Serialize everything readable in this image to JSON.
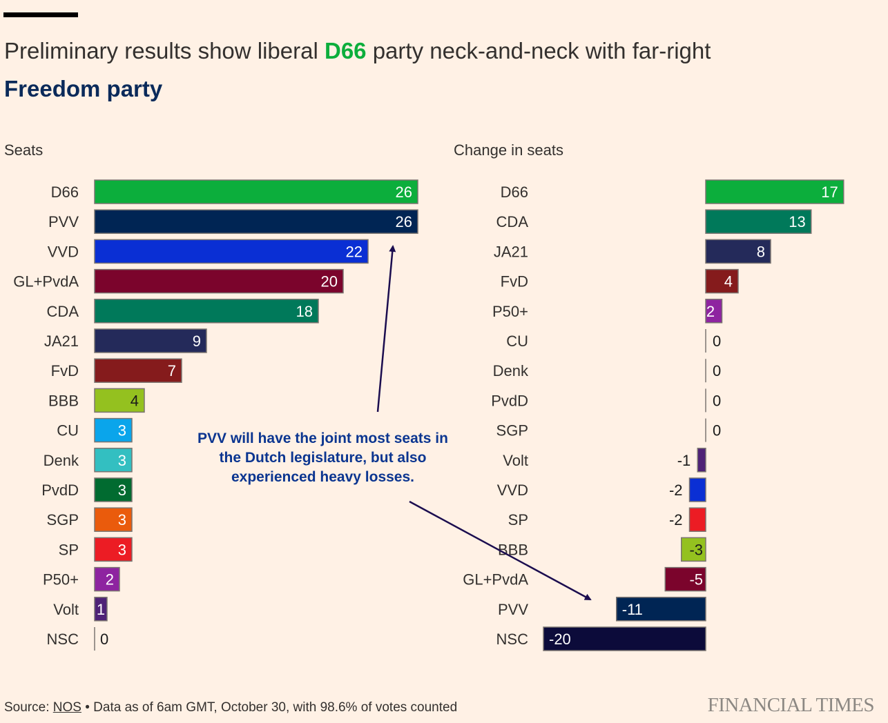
{
  "title": {
    "part1": "Preliminary results show liberal ",
    "highlight1": "D66",
    "part2": " party neck-and-neck with far-right",
    "highlight2": "Freedom party"
  },
  "annotation": {
    "lines": [
      "PVV will have the joint most seats in",
      "the Dutch legislature, but also",
      "experienced heavy losses."
    ]
  },
  "footer": {
    "source_label": "Source: ",
    "source_link": "NOS",
    "note": " • Data as of 6am GMT, October 30, with 98.6% of votes counted",
    "logo": "FINANCIAL TIMES"
  },
  "colors": {
    "background": "#fff1e5",
    "D66": "#0cae3c",
    "PVV": "#002554",
    "VVD": "#0a2fd4",
    "GL+PvdA": "#7b042c",
    "CDA": "#00795a",
    "JA21": "#242a5a",
    "FvD": "#851b1c",
    "BBB": "#94c11f",
    "CU": "#0aa5eb",
    "Denk": "#33bfc1",
    "PvdD": "#016b30",
    "SGP": "#ea5b0c",
    "SP": "#ec1c24",
    "P50+": "#8e24a0",
    "Volt": "#4e2277",
    "NSC": "#0c0b3a"
  },
  "chart_data": [
    {
      "type": "bar",
      "title": "Seats",
      "orientation": "horizontal",
      "categories": [
        "D66",
        "PVV",
        "VVD",
        "GL+PvdA",
        "CDA",
        "JA21",
        "FvD",
        "BBB",
        "CU",
        "Denk",
        "PvdD",
        "SGP",
        "SP",
        "P50+",
        "Volt",
        "NSC"
      ],
      "values": [
        26,
        26,
        22,
        20,
        18,
        9,
        7,
        4,
        3,
        3,
        3,
        3,
        3,
        2,
        1,
        0
      ],
      "xlim": [
        0,
        26
      ]
    },
    {
      "type": "bar",
      "title": "Change in seats",
      "orientation": "horizontal",
      "categories": [
        "D66",
        "CDA",
        "JA21",
        "FvD",
        "P50+",
        "CU",
        "Denk",
        "PvdD",
        "SGP",
        "Volt",
        "VVD",
        "SP",
        "BBB",
        "GL+PvdA",
        "PVV",
        "NSC"
      ],
      "values": [
        17,
        13,
        8,
        4,
        2,
        0,
        0,
        0,
        0,
        -1,
        -2,
        -2,
        -3,
        -5,
        -11,
        -20
      ],
      "xlim": [
        -20,
        17
      ]
    }
  ]
}
